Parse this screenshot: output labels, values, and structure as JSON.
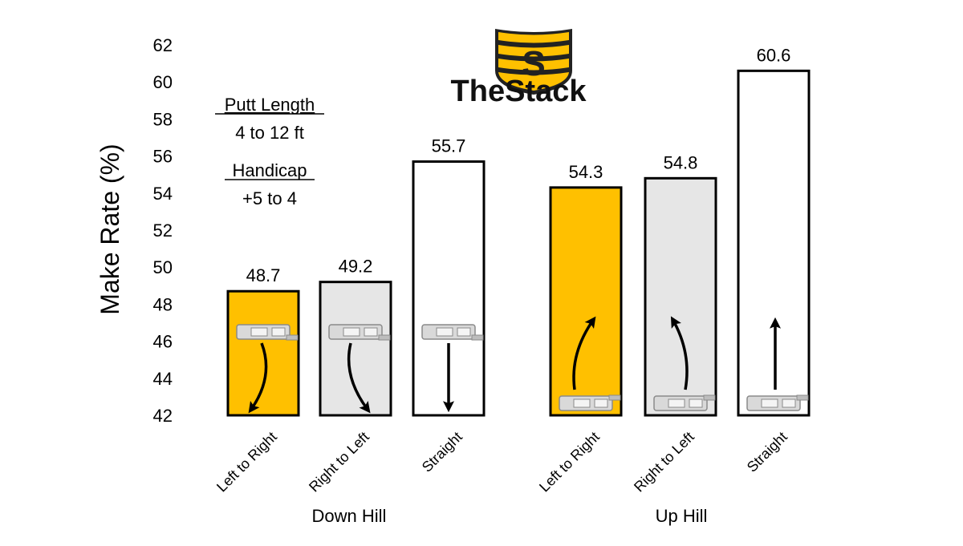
{
  "brand": {
    "name": "TheStack",
    "logo_icon": "stack-shield-icon",
    "logo_color": "#FBBF0A"
  },
  "info": {
    "label1": "Putt Length",
    "value1": "4 to 12 ft",
    "label2": "Handicap",
    "value2": "+5 to 4"
  },
  "chart_data": {
    "type": "bar",
    "title": "",
    "ylabel": "Make Rate (%)",
    "xlabel": "",
    "ylim": [
      42,
      62
    ],
    "yticks": [
      "42",
      "44",
      "46",
      "48",
      "50",
      "52",
      "54",
      "56",
      "58",
      "60",
      "62"
    ],
    "grid": false,
    "groups": [
      {
        "name": "Down Hill",
        "bars": [
          {
            "category": "Left to Right",
            "value": 48.7,
            "label": "48.7",
            "color": "#FFC000",
            "direction": "down-curve-right",
            "icon": "putter-icon"
          },
          {
            "category": "Right to Left",
            "value": 49.2,
            "label": "49.2",
            "color": "#E6E6E6",
            "direction": "down-curve-left",
            "icon": "putter-icon"
          },
          {
            "category": "Straight",
            "value": 55.7,
            "label": "55.7",
            "color": "#FFFFFF",
            "direction": "down-straight",
            "icon": "putter-icon"
          }
        ]
      },
      {
        "name": "Up Hill",
        "bars": [
          {
            "category": "Left to Right",
            "value": 54.3,
            "label": "54.3",
            "color": "#FFC000",
            "direction": "up-curve-right",
            "icon": "putter-icon"
          },
          {
            "category": "Right to Left",
            "value": 54.8,
            "label": "54.8",
            "color": "#E6E6E6",
            "direction": "up-curve-left",
            "icon": "putter-icon"
          },
          {
            "category": "Straight",
            "value": 60.6,
            "label": "60.6",
            "color": "#FFFFFF",
            "direction": "up-straight",
            "icon": "putter-icon"
          }
        ]
      }
    ]
  }
}
